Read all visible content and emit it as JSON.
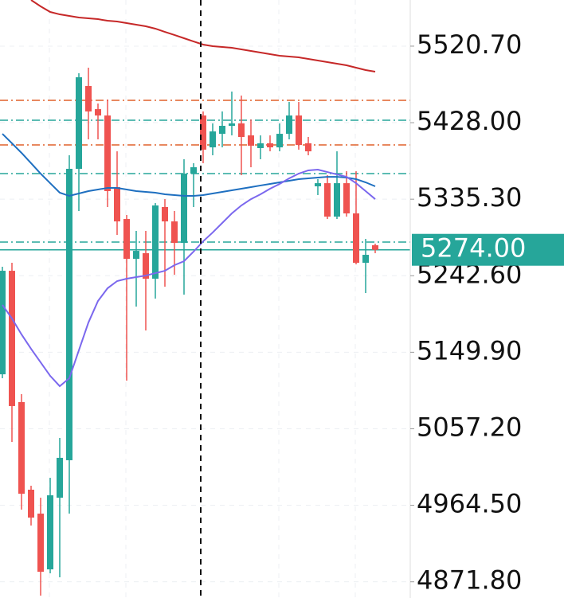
{
  "chart_data": {
    "type": "candlestick",
    "up_color": "#26a69a",
    "down_color": "#ef5350",
    "ylim": [
      4852.2,
      5576.6
    ],
    "yticks": [
      {
        "value": 5520.7,
        "label": "5520.70"
      },
      {
        "value": 5428,
        "label": "5428.00"
      },
      {
        "value": 5335.3,
        "label": "5335.30"
      },
      {
        "value": 5242.6,
        "label": "5242.60"
      },
      {
        "value": 5149.9,
        "label": "5149.90"
      },
      {
        "value": 5057.2,
        "label": "5057.20"
      },
      {
        "value": 4964.5,
        "label": "4964.50"
      },
      {
        "value": 4871.8,
        "label": "4871.80"
      }
    ],
    "grid": true,
    "open": [
      5123.2,
      5248.6,
      5089.5,
      4983.4,
      4954.4,
      4886.9,
      4973.7,
      5019.1,
      5372.1,
      5472.4,
      5444.4,
      5436.7,
      5349.9,
      5311.3,
      5263.1,
      5269.9,
      5239.0,
      5325.8,
      5308.4,
      5282.4,
      5366.3,
      5436.7,
      5398.1,
      5414.5,
      5424.2,
      5427.1,
      5412.6,
      5397.2,
      5403.0,
      5398.1,
      5414.5,
      5436.7,
      5403.0,
      5350.9,
      5354.7,
      5314.2,
      5354.7,
      5318.1,
      5258.3,
      5279.5
    ],
    "high": [
      5253.5,
      5258.3,
      5099.1,
      4988.2,
      4973.7,
      4997.8,
      5046.1,
      5388.5,
      5487.9,
      5494.6,
      5451.2,
      5456.0,
      5393.3,
      5316.2,
      5296.9,
      5296.9,
      5330.6,
      5335.4,
      5321.0,
      5383.7,
      5378.9,
      5441.6,
      5427.1,
      5441.6,
      5465.7,
      5460.8,
      5431.9,
      5412.6,
      5412.6,
      5427.1,
      5453.1,
      5453.1,
      5410.7,
      5359.6,
      5364.4,
      5393.3,
      5369.2,
      5369.2,
      5287.2,
      5281.4
    ],
    "low": [
      5118.4,
      5041.2,
      4959.3,
      4940.0,
      4855.1,
      4882.1,
      4877.3,
      4954.4,
      5321.0,
      5407.8,
      5407.8,
      5325.8,
      5292.0,
      5115.5,
      5205.2,
      5176.3,
      5214.9,
      5229.3,
      5243.8,
      5219.7,
      5325.8,
      5378.9,
      5388.5,
      5398.1,
      5412.6,
      5364.4,
      5374.0,
      5383.7,
      5393.3,
      5393.3,
      5407.8,
      5395.3,
      5388.5,
      5340.3,
      5311.3,
      5311.3,
      5314.2,
      5256.4,
      5221.6,
      5269.9
    ],
    "close": [
      5248.6,
      5084.7,
      4978.5,
      4949.6,
      4884.0,
      4976.6,
      5022.0,
      5372.1,
      5483.0,
      5441.6,
      5436.7,
      5345.1,
      5308.4,
      5263.1,
      5272.7,
      5239.0,
      5327.7,
      5308.4,
      5282.4,
      5366.3,
      5374.0,
      5395.3,
      5417.4,
      5424.2,
      5427.1,
      5410.7,
      5400.1,
      5403.0,
      5398.1,
      5414.5,
      5436.7,
      5401.0,
      5393.3,
      5354.7,
      5314.2,
      5354.7,
      5318.1,
      5258.3,
      5267.9,
      5274.0
    ],
    "series": [
      {
        "color": "#c62828",
        "values": [
          null,
          null,
          null,
          5576.6,
          5568.9,
          5562.1,
          5559.2,
          5557.3,
          5555.4,
          5554.4,
          5553.4,
          5551.5,
          5550.6,
          5548.6,
          5546.7,
          5544.8,
          5541.9,
          5538.0,
          5534.2,
          5530.3,
          5526.4,
          5522.6,
          5520.7,
          5519.7,
          5518.7,
          5516.8,
          5514.9,
          5512.9,
          5511.0,
          5509.1,
          5508.1,
          5507.1,
          5505.2,
          5503.3,
          5501.4,
          5499.4,
          5497.5,
          5494.6,
          5491.7,
          5489.8
        ]
      },
      {
        "color": "#1e6fc0",
        "values": [
          5414.5,
          5403.0,
          5391.4,
          5378.9,
          5366.3,
          5354.7,
          5343.2,
          5339.3,
          5342.2,
          5345.1,
          5347.0,
          5349.0,
          5349.0,
          5347.0,
          5345.1,
          5344.1,
          5343.2,
          5341.2,
          5340.3,
          5339.3,
          5339.3,
          5340.3,
          5342.2,
          5344.1,
          5346.1,
          5348.0,
          5349.9,
          5351.9,
          5353.8,
          5355.7,
          5357.6,
          5359.6,
          5360.5,
          5361.5,
          5362.4,
          5362.4,
          5361.5,
          5359.6,
          5355.7,
          5350.9
        ]
      },
      {
        "color": "#7b68ee",
        "values": [
          5207.2,
          5190.8,
          5171.5,
          5154.1,
          5137.7,
          5121.3,
          5108.8,
          5118.4,
          5152.2,
          5185.9,
          5212.0,
          5227.4,
          5236.1,
          5239.0,
          5240.9,
          5242.8,
          5245.7,
          5248.6,
          5255.4,
          5260.2,
          5271.8,
          5284.3,
          5295.0,
          5306.5,
          5318.1,
          5327.7,
          5335.4,
          5341.2,
          5348.0,
          5353.8,
          5360.5,
          5366.3,
          5370.2,
          5371.1,
          5368.2,
          5365.3,
          5362.4,
          5354.7,
          5345.1,
          5335.4
        ]
      }
    ],
    "levels": [
      {
        "value": 5455.1,
        "color": "#e0602a"
      },
      {
        "value": 5430.9,
        "color": "#26a69a"
      },
      {
        "value": 5401.0,
        "color": "#e0602a"
      },
      {
        "value": 5366.3,
        "color": "#26a69a"
      },
      {
        "value": 5283.4,
        "color": "#26a69a"
      }
    ],
    "last_price": {
      "value": 5274,
      "label": "5274.00",
      "color": "#26a69a"
    }
  }
}
